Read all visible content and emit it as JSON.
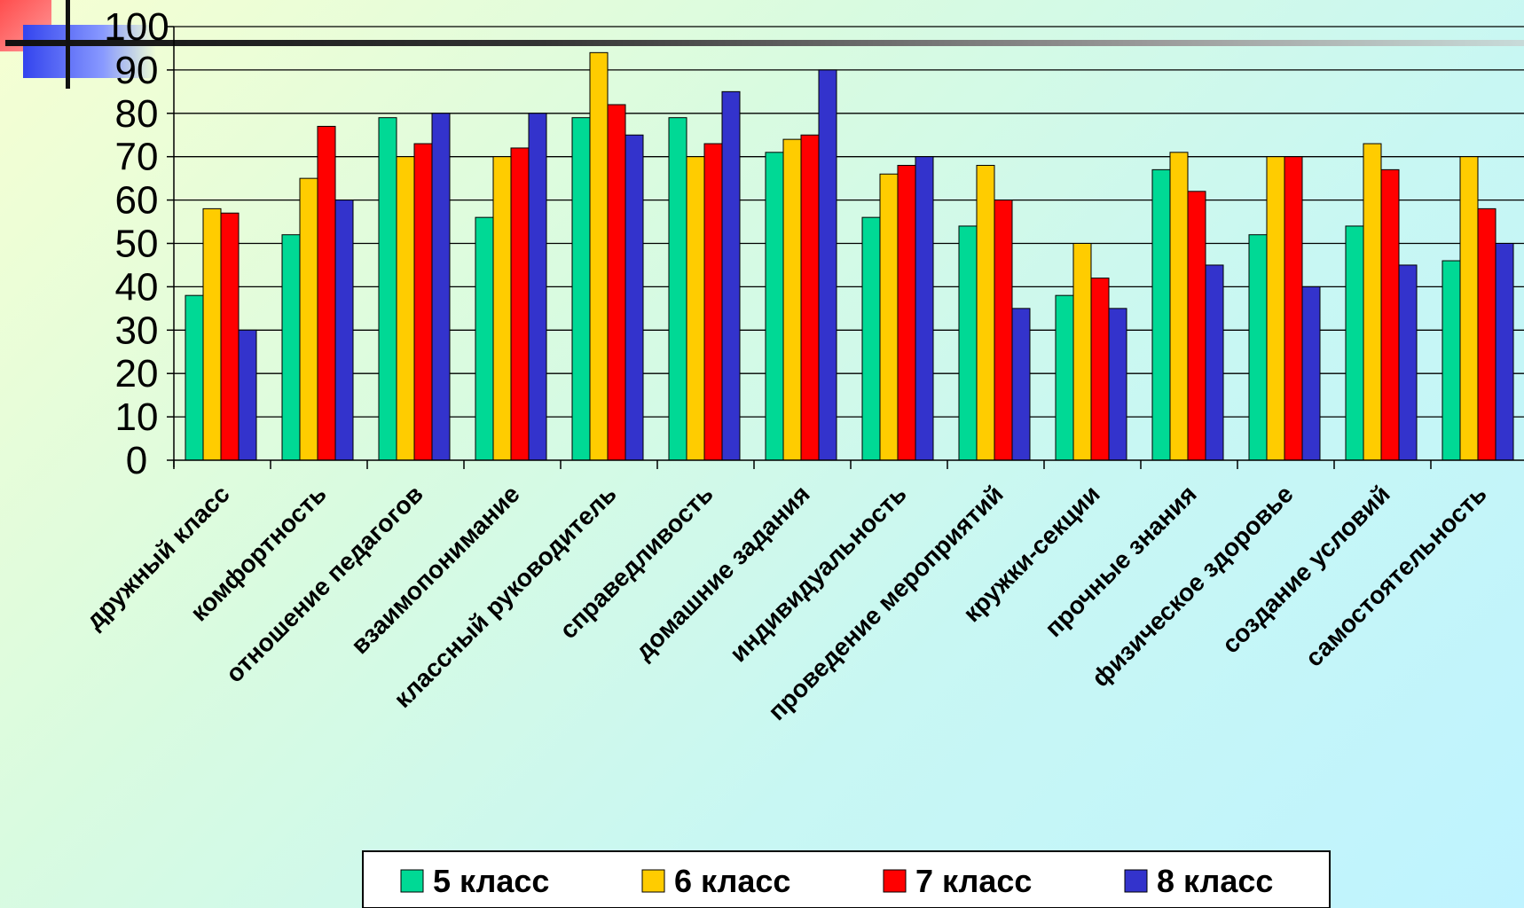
{
  "chart_data": {
    "type": "bar",
    "title": "",
    "xlabel": "",
    "ylabel": "",
    "ylim": [
      0,
      100
    ],
    "yticks": [
      "0",
      "10",
      "20",
      "30",
      "40",
      "50",
      "60",
      "70",
      "80",
      "90",
      "100"
    ],
    "grid": true,
    "legend_position": "bottom",
    "categories": [
      "дружный класс",
      "комфортность",
      "отношение педагогов",
      "взаимопонимание",
      "классный руководитель",
      "справедливость",
      "домашние задания",
      "индивидуальность",
      "проведение мероприятий",
      "кружки-секции",
      "прочные знания",
      "физическое здоровье",
      "создание условий",
      "самостоятельность"
    ],
    "series": [
      {
        "name": "5 класс",
        "color": "#00d995",
        "values": [
          38,
          52,
          79,
          56,
          79,
          79,
          71,
          56,
          54,
          38,
          67,
          52,
          54,
          46
        ]
      },
      {
        "name": "6 класс",
        "color": "#ffcc00",
        "values": [
          58,
          65,
          70,
          70,
          94,
          70,
          74,
          66,
          68,
          50,
          71,
          70,
          73,
          70
        ]
      },
      {
        "name": "7 класс",
        "color": "#ff0000",
        "values": [
          57,
          77,
          73,
          72,
          82,
          73,
          75,
          68,
          60,
          42,
          62,
          70,
          67,
          58
        ]
      },
      {
        "name": "8 класс",
        "color": "#3333cc",
        "values": [
          30,
          60,
          80,
          80,
          75,
          85,
          90,
          70,
          35,
          35,
          45,
          40,
          45,
          50
        ]
      }
    ]
  }
}
